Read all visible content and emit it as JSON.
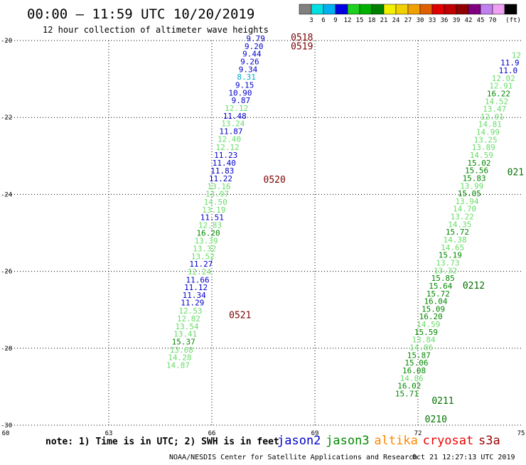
{
  "title": "00:00 – 11:59 UTC 10/20/2019",
  "subtitle": "12 hour collection of altimeter wave heights",
  "colorbar": {
    "colors": [
      "#808080",
      "#00e0e0",
      "#00b0f0",
      "#0000e0",
      "#20d020",
      "#00b000",
      "#008000",
      "#f0f000",
      "#f0d000",
      "#f0a000",
      "#e06000",
      "#e00000",
      "#c00000",
      "#900000",
      "#800080",
      "#c080f0",
      "#f0a0f0",
      "#000000"
    ],
    "labels": [
      "3",
      "6",
      "9",
      "12",
      "15",
      "18",
      "21",
      "24",
      "27",
      "30",
      "33",
      "36",
      "39",
      "42",
      "45",
      "70"
    ],
    "unit": "(ft)"
  },
  "note": "note:  1) Time is in UTC; 2) SWH is in feet",
  "missions": [
    {
      "name": "jason2",
      "color": "#0000cc"
    },
    {
      "name": "jason3",
      "color": "#008800"
    },
    {
      "name": "altika",
      "color": "#ff8800"
    },
    {
      "name": "cryosat",
      "color": "#ee0000"
    },
    {
      "name": "s3a",
      "color": "#990000"
    }
  ],
  "credit": "NOAA/NESDIS Center for Satellite Applications and Research",
  "timestamp": "Oct 21 12:27:13 UTC 2019",
  "chart_data": {
    "type": "scatter",
    "xlim": [
      60,
      75
    ],
    "ylim": [
      -30,
      -20
    ],
    "x_ticks": [
      "60",
      "63",
      "66",
      "69",
      "72",
      "75"
    ],
    "y_ticks": [
      "-20",
      "-22",
      "-24",
      "-26",
      "-28",
      "-30"
    ],
    "grid": true,
    "time_labels": [
      {
        "text": "0518",
        "lon": 68.3,
        "lat": -20.0,
        "color": "#7a0000"
      },
      {
        "text": "0519",
        "lon": 68.3,
        "lat": -20.23,
        "color": "#7a0000"
      },
      {
        "text": "0520",
        "lon": 67.5,
        "lat": -23.7,
        "color": "#7a0000"
      },
      {
        "text": "0521",
        "lon": 66.5,
        "lat": -27.22,
        "color": "#7a0000"
      },
      {
        "text": "0212",
        "lon": 73.3,
        "lat": -26.45,
        "color": "#007000"
      },
      {
        "text": "0211",
        "lon": 72.4,
        "lat": -29.45,
        "color": "#007000"
      },
      {
        "text": "0210",
        "lon": 72.2,
        "lat": -29.93,
        "color": "#007000"
      },
      {
        "text": "021",
        "lon": 74.6,
        "lat": -23.5,
        "color": "#007000"
      }
    ],
    "tracks": [
      {
        "name": "track-1",
        "points": [
          {
            "lon": 67.55,
            "lat": -20.02,
            "swh": "9.79",
            "color": "#0000cc"
          },
          {
            "lon": 67.5,
            "lat": -20.22,
            "swh": "9.20",
            "color": "#0000cc"
          },
          {
            "lon": 67.44,
            "lat": -20.42,
            "swh": "9.44",
            "color": "#0000cc"
          },
          {
            "lon": 67.38,
            "lat": -20.62,
            "swh": "9.26",
            "color": "#0000cc"
          },
          {
            "lon": 67.33,
            "lat": -20.82,
            "swh": "9.34",
            "color": "#0000cc"
          },
          {
            "lon": 67.28,
            "lat": -21.02,
            "swh": "8.31",
            "color": "#00aacc"
          },
          {
            "lon": 67.23,
            "lat": -21.23,
            "swh": "9.15",
            "color": "#0000cc"
          },
          {
            "lon": 67.17,
            "lat": -21.43,
            "swh": "10.90",
            "color": "#0000cc"
          },
          {
            "lon": 67.12,
            "lat": -21.63,
            "swh": "9.87",
            "color": "#0000cc"
          },
          {
            "lon": 67.06,
            "lat": -21.83,
            "swh": "12.12",
            "color": "#66dd66"
          },
          {
            "lon": 67.01,
            "lat": -22.03,
            "swh": "11.48",
            "color": "#0000cc"
          },
          {
            "lon": 66.96,
            "lat": -22.23,
            "swh": "13.24",
            "color": "#66dd66"
          },
          {
            "lon": 66.9,
            "lat": -22.43,
            "swh": "11.87",
            "color": "#0000cc"
          },
          {
            "lon": 66.85,
            "lat": -22.63,
            "swh": "12.40",
            "color": "#66dd66"
          },
          {
            "lon": 66.8,
            "lat": -22.85,
            "swh": "12.12",
            "color": "#66dd66"
          },
          {
            "lon": 66.75,
            "lat": -23.05,
            "swh": "11.23",
            "color": "#0000cc"
          },
          {
            "lon": 66.7,
            "lat": -23.25,
            "swh": "11.40",
            "color": "#0000cc"
          },
          {
            "lon": 66.65,
            "lat": -23.46,
            "swh": "11.83",
            "color": "#0000cc"
          },
          {
            "lon": 66.6,
            "lat": -23.66,
            "swh": "11.22",
            "color": "#0000cc"
          },
          {
            "lon": 66.55,
            "lat": -23.86,
            "swh": "13.16",
            "color": "#66dd66"
          },
          {
            "lon": 66.5,
            "lat": -24.06,
            "swh": "13.97",
            "color": "#66dd66"
          },
          {
            "lon": 66.45,
            "lat": -24.27,
            "swh": "14.50",
            "color": "#66dd66"
          },
          {
            "lon": 66.4,
            "lat": -24.47,
            "swh": "13.19",
            "color": "#66dd66"
          },
          {
            "lon": 66.35,
            "lat": -24.67,
            "swh": "11.51",
            "color": "#0000cc"
          },
          {
            "lon": 66.29,
            "lat": -24.87,
            "swh": "12.83",
            "color": "#66dd66"
          },
          {
            "lon": 66.24,
            "lat": -25.07,
            "swh": "16.20",
            "color": "#008800"
          },
          {
            "lon": 66.18,
            "lat": -25.28,
            "swh": "13.39",
            "color": "#66dd66"
          },
          {
            "lon": 66.13,
            "lat": -25.48,
            "swh": "13.32",
            "color": "#66dd66"
          },
          {
            "lon": 66.08,
            "lat": -25.68,
            "swh": "13.52",
            "color": "#66dd66"
          },
          {
            "lon": 66.03,
            "lat": -25.88,
            "swh": "11.27",
            "color": "#0000cc"
          },
          {
            "lon": 65.98,
            "lat": -26.08,
            "swh": "12.24",
            "color": "#66dd66"
          },
          {
            "lon": 65.93,
            "lat": -26.29,
            "swh": "11.66",
            "color": "#0000cc"
          },
          {
            "lon": 65.88,
            "lat": -26.49,
            "swh": "11.12",
            "color": "#0000cc"
          },
          {
            "lon": 65.83,
            "lat": -26.69,
            "swh": "11.34",
            "color": "#0000cc"
          },
          {
            "lon": 65.78,
            "lat": -26.89,
            "swh": "11.29",
            "color": "#0000cc"
          },
          {
            "lon": 65.72,
            "lat": -27.1,
            "swh": "12.53",
            "color": "#66dd66"
          },
          {
            "lon": 65.67,
            "lat": -27.3,
            "swh": "12.82",
            "color": "#66dd66"
          },
          {
            "lon": 65.62,
            "lat": -27.5,
            "swh": "13.54",
            "color": "#66dd66"
          },
          {
            "lon": 65.57,
            "lat": -27.7,
            "swh": "13.41",
            "color": "#66dd66"
          },
          {
            "lon": 65.52,
            "lat": -27.9,
            "swh": "15.37",
            "color": "#008800"
          },
          {
            "lon": 65.46,
            "lat": -28.11,
            "swh": "13.68",
            "color": "#66dd66"
          },
          {
            "lon": 65.41,
            "lat": -28.31,
            "swh": "14.28",
            "color": "#66dd66"
          },
          {
            "lon": 65.36,
            "lat": -28.51,
            "swh": "14.87",
            "color": "#66dd66"
          }
        ]
      },
      {
        "name": "track-2",
        "points": [
          {
            "lon": 75.0,
            "lat": -20.45,
            "swh": "12",
            "color": "#66dd66"
          },
          {
            "lon": 74.95,
            "lat": -20.65,
            "swh": "11.9",
            "color": "#0000cc"
          },
          {
            "lon": 74.9,
            "lat": -20.85,
            "swh": "11.0",
            "color": "#0000cc"
          },
          {
            "lon": 74.83,
            "lat": -21.05,
            "swh": "12.02",
            "color": "#66dd66"
          },
          {
            "lon": 74.76,
            "lat": -21.25,
            "swh": "12.91",
            "color": "#66dd66"
          },
          {
            "lon": 74.69,
            "lat": -21.45,
            "swh": "16.22",
            "color": "#008800"
          },
          {
            "lon": 74.63,
            "lat": -21.65,
            "swh": "14.52",
            "color": "#66dd66"
          },
          {
            "lon": 74.57,
            "lat": -21.85,
            "swh": "13.47",
            "color": "#66dd66"
          },
          {
            "lon": 74.5,
            "lat": -22.05,
            "swh": "12.91",
            "color": "#66dd66"
          },
          {
            "lon": 74.44,
            "lat": -22.25,
            "swh": "14.81",
            "color": "#66dd66"
          },
          {
            "lon": 74.38,
            "lat": -22.45,
            "swh": "14.99",
            "color": "#66dd66"
          },
          {
            "lon": 74.31,
            "lat": -22.65,
            "swh": "13.25",
            "color": "#66dd66"
          },
          {
            "lon": 74.25,
            "lat": -22.85,
            "swh": "13.89",
            "color": "#66dd66"
          },
          {
            "lon": 74.19,
            "lat": -23.05,
            "swh": "14.59",
            "color": "#66dd66"
          },
          {
            "lon": 74.12,
            "lat": -23.25,
            "swh": "15.02",
            "color": "#008800"
          },
          {
            "lon": 74.05,
            "lat": -23.45,
            "swh": "15.56",
            "color": "#008800"
          },
          {
            "lon": 73.98,
            "lat": -23.65,
            "swh": "15.83",
            "color": "#008800"
          },
          {
            "lon": 73.91,
            "lat": -23.85,
            "swh": "13.99",
            "color": "#66dd66"
          },
          {
            "lon": 73.84,
            "lat": -24.05,
            "swh": "15.05",
            "color": "#008800"
          },
          {
            "lon": 73.77,
            "lat": -24.25,
            "swh": "13.94",
            "color": "#66dd66"
          },
          {
            "lon": 73.7,
            "lat": -24.45,
            "swh": "14.70",
            "color": "#66dd66"
          },
          {
            "lon": 73.63,
            "lat": -24.65,
            "swh": "13.22",
            "color": "#66dd66"
          },
          {
            "lon": 73.56,
            "lat": -24.85,
            "swh": "14.35",
            "color": "#66dd66"
          },
          {
            "lon": 73.49,
            "lat": -25.05,
            "swh": "15.72",
            "color": "#008800"
          },
          {
            "lon": 73.42,
            "lat": -25.25,
            "swh": "14.38",
            "color": "#66dd66"
          },
          {
            "lon": 73.35,
            "lat": -25.45,
            "swh": "14.65",
            "color": "#66dd66"
          },
          {
            "lon": 73.28,
            "lat": -25.65,
            "swh": "15.19",
            "color": "#008800"
          },
          {
            "lon": 73.21,
            "lat": -25.85,
            "swh": "13.73",
            "color": "#66dd66"
          },
          {
            "lon": 73.14,
            "lat": -26.05,
            "swh": "13.32",
            "color": "#66dd66"
          },
          {
            "lon": 73.07,
            "lat": -26.25,
            "swh": "15.85",
            "color": "#008800"
          },
          {
            "lon": 73.0,
            "lat": -26.45,
            "swh": "15.64",
            "color": "#008800"
          },
          {
            "lon": 72.93,
            "lat": -26.65,
            "swh": "15.72",
            "color": "#008800"
          },
          {
            "lon": 72.86,
            "lat": -26.85,
            "swh": "16.04",
            "color": "#008800"
          },
          {
            "lon": 72.79,
            "lat": -27.05,
            "swh": "15.09",
            "color": "#008800"
          },
          {
            "lon": 72.72,
            "lat": -27.25,
            "swh": "16.20",
            "color": "#008800"
          },
          {
            "lon": 72.65,
            "lat": -27.45,
            "swh": "14.59",
            "color": "#66dd66"
          },
          {
            "lon": 72.58,
            "lat": -27.65,
            "swh": "15.59",
            "color": "#008800"
          },
          {
            "lon": 72.51,
            "lat": -27.85,
            "swh": "13.84",
            "color": "#66dd66"
          },
          {
            "lon": 72.44,
            "lat": -28.05,
            "swh": "14.86",
            "color": "#66dd66"
          },
          {
            "lon": 72.37,
            "lat": -28.25,
            "swh": "15.87",
            "color": "#008800"
          },
          {
            "lon": 72.3,
            "lat": -28.45,
            "swh": "15.06",
            "color": "#008800"
          },
          {
            "lon": 72.23,
            "lat": -28.65,
            "swh": "16.08",
            "color": "#008800"
          },
          {
            "lon": 72.16,
            "lat": -28.85,
            "swh": "14.86",
            "color": "#66dd66"
          },
          {
            "lon": 72.09,
            "lat": -29.05,
            "swh": "16.02",
            "color": "#008800"
          },
          {
            "lon": 72.02,
            "lat": -29.25,
            "swh": "15.71",
            "color": "#008800"
          }
        ]
      }
    ]
  }
}
